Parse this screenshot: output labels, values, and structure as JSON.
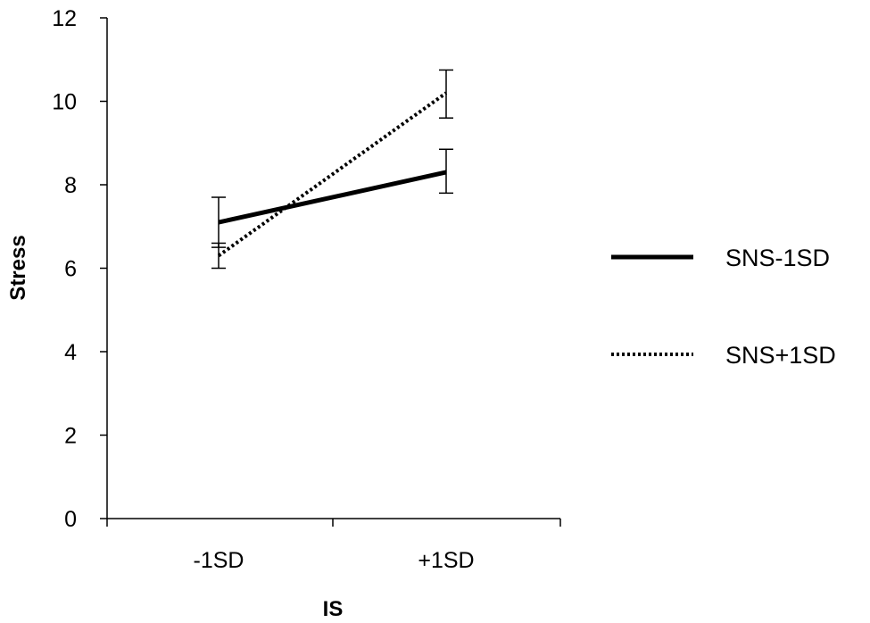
{
  "chart_data": {
    "type": "line",
    "title": "",
    "xlabel": "IS",
    "ylabel": "Stress",
    "categories": [
      "-1SD",
      "+1SD"
    ],
    "ylim": [
      0,
      12
    ],
    "yticks": [
      0,
      2,
      4,
      6,
      8,
      10,
      12
    ],
    "grid": false,
    "legend_position": "right",
    "series": [
      {
        "name": "SNS-1SD",
        "style": "solid",
        "color": "#000000",
        "values": [
          7.1,
          8.3
        ],
        "error_low": [
          6.5,
          7.8
        ],
        "error_high": [
          7.7,
          8.85
        ]
      },
      {
        "name": "SNS+1SD",
        "style": "dotted",
        "color": "#000000",
        "values": [
          6.3,
          10.2
        ],
        "error_low": [
          6.0,
          9.6
        ],
        "error_high": [
          6.6,
          10.75
        ]
      }
    ]
  }
}
